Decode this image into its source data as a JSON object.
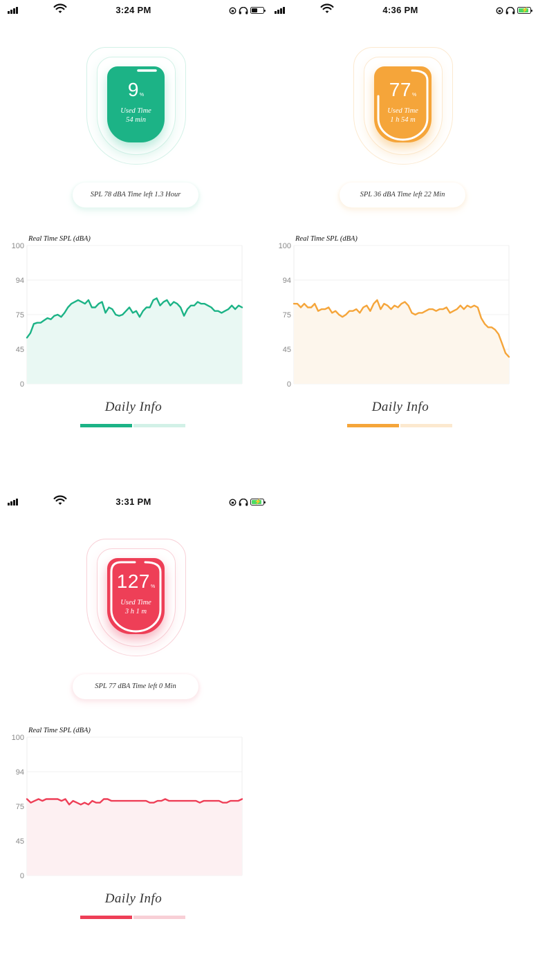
{
  "panels": [
    {
      "theme": {
        "main": "#1cb386",
        "light": "#b9eadb",
        "fill": "#e9f8f3",
        "pale": "#d2f1e7"
      },
      "status": {
        "time": "3:24 PM",
        "battery": "half"
      },
      "gauge": {
        "percent": "9",
        "percent_sign": "%",
        "used_label": "Used Time",
        "used_time": "54 min",
        "progress": 0.09
      },
      "info": "SPL 78 dBA  Time left 1.3 Hour",
      "chart_data": {
        "type": "area",
        "title": "Real Time SPL (dBA)",
        "ylim": [
          0,
          100
        ],
        "yticks": [
          "100",
          "94",
          "75",
          "45",
          "0"
        ],
        "values": [
          55,
          59,
          67,
          68,
          68,
          70,
          72,
          71,
          74,
          75,
          73,
          76,
          79,
          81,
          82,
          83,
          82,
          81,
          83,
          79,
          79,
          81,
          82,
          76,
          79,
          78,
          75,
          74,
          75,
          77,
          79,
          76,
          77,
          73,
          77,
          79,
          79,
          83,
          84,
          80,
          82,
          83,
          80,
          82,
          81,
          79,
          74,
          78,
          80,
          80,
          82,
          81,
          81,
          80,
          79,
          77,
          77,
          76,
          77,
          78,
          80,
          78,
          80,
          79
        ]
      },
      "daily_label": "Daily Info"
    },
    {
      "theme": {
        "main": "#f5a53a",
        "light": "#fbd9a8",
        "fill": "#fdf6ec",
        "pale": "#fce9cf"
      },
      "status": {
        "time": "4:36 PM",
        "battery": "charging"
      },
      "gauge": {
        "percent": "77",
        "percent_sign": "%",
        "used_label": "Used Time",
        "used_time": "1 h 54 m",
        "progress": 0.77
      },
      "info": "SPL 36 dBA  Time left 22 Min",
      "chart_data": {
        "type": "area",
        "title": "Real Time SPL (dBA)",
        "ylim": [
          0,
          100
        ],
        "yticks": [
          "100",
          "94",
          "75",
          "45",
          "0"
        ],
        "values": [
          81,
          81,
          79,
          81,
          79,
          79,
          81,
          77,
          78,
          78,
          79,
          76,
          77,
          75,
          73,
          75,
          77,
          77,
          78,
          76,
          79,
          80,
          77,
          81,
          83,
          78,
          81,
          80,
          78,
          80,
          79,
          81,
          82,
          80,
          76,
          75,
          76,
          76,
          77,
          78,
          78,
          77,
          78,
          78,
          79,
          76,
          77,
          78,
          80,
          78,
          80,
          79,
          80,
          79,
          72,
          67,
          64,
          64,
          62,
          58,
          50,
          40,
          35
        ]
      },
      "daily_label": "Daily Info"
    },
    {
      "theme": {
        "main": "#ee3f57",
        "light": "#f7b3bf",
        "fill": "#fdf0f2",
        "pale": "#f8cfd6"
      },
      "status": {
        "time": "3:31 PM",
        "battery": "charging"
      },
      "gauge": {
        "percent": "127",
        "percent_sign": "%",
        "used_label": "Used Time",
        "used_time": "3 h 1 m",
        "progress": 1.0
      },
      "info": "SPL 77 dBA  Time left 0 Min",
      "chart_data": {
        "type": "area",
        "title": "Real Time SPL (dBA)",
        "ylim": [
          0,
          100
        ],
        "yticks": [
          "100",
          "94",
          "75",
          "45",
          "0"
        ],
        "values": [
          79,
          77,
          78,
          79,
          78,
          79,
          79,
          79,
          79,
          78,
          79,
          76,
          78,
          77,
          76,
          77,
          76,
          78,
          77,
          77,
          79,
          79,
          78,
          78,
          78,
          78,
          78,
          78,
          78,
          78,
          78,
          78,
          77,
          77,
          78,
          78,
          79,
          78,
          78,
          78,
          78,
          78,
          78,
          78,
          78,
          77,
          78,
          78,
          78,
          78,
          78,
          77,
          77,
          78,
          78,
          78,
          79
        ]
      },
      "daily_label": "Daily Info"
    }
  ]
}
